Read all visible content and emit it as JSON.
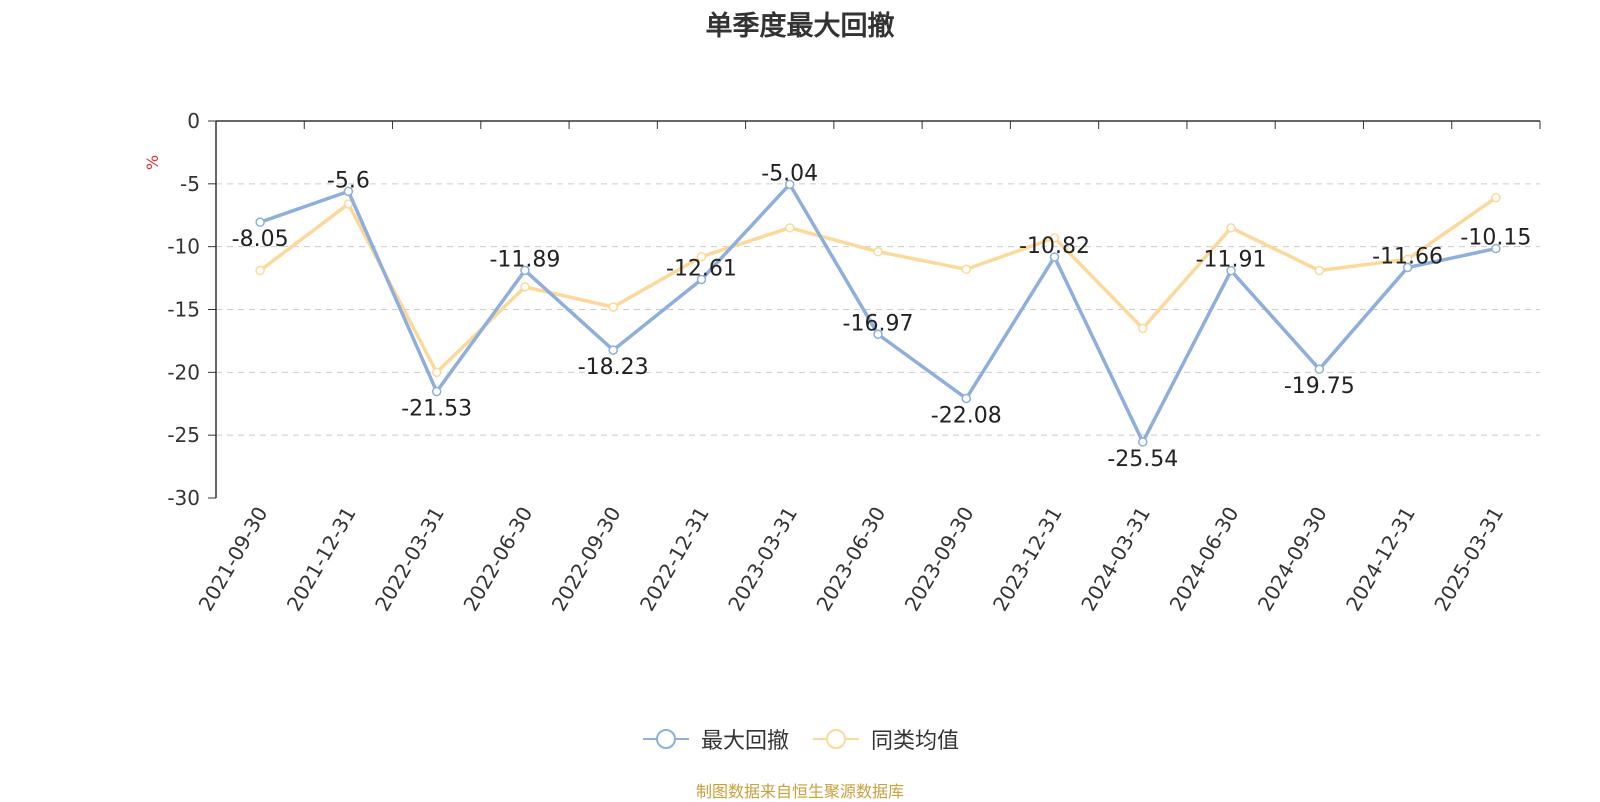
{
  "chart_data": {
    "type": "line",
    "title": "单季度最大回撤",
    "ylabel": "%",
    "ylim": [
      -30,
      0
    ],
    "yticks": [
      0,
      -5,
      -10,
      -15,
      -20,
      -25,
      -30
    ],
    "grid": true,
    "legend_position": "bottom",
    "categories": [
      "2021-09-30",
      "2021-12-31",
      "2022-03-31",
      "2022-06-30",
      "2022-09-30",
      "2022-12-31",
      "2023-03-31",
      "2023-06-30",
      "2023-09-30",
      "2023-12-31",
      "2024-03-31",
      "2024-06-30",
      "2024-09-30",
      "2024-12-31",
      "2025-03-31"
    ],
    "series": [
      {
        "name": "最大回撤",
        "color": "#8eaedb",
        "show_labels": true,
        "values": [
          -8.05,
          -5.6,
          -21.53,
          -11.89,
          -18.23,
          -12.61,
          -5.04,
          -16.97,
          -22.08,
          -10.82,
          -25.54,
          -11.91,
          -19.75,
          -11.66,
          -10.15
        ]
      },
      {
        "name": "同类均值",
        "color": "#fcd99a",
        "show_labels": false,
        "values": [
          -11.9,
          -6.6,
          -20.0,
          -13.2,
          -14.8,
          -10.8,
          -8.5,
          -10.4,
          -11.8,
          -9.3,
          -16.5,
          -8.5,
          -11.9,
          -11.0,
          -6.1
        ]
      }
    ]
  },
  "footer": {
    "source": "制图数据来自恒生聚源数据库"
  }
}
